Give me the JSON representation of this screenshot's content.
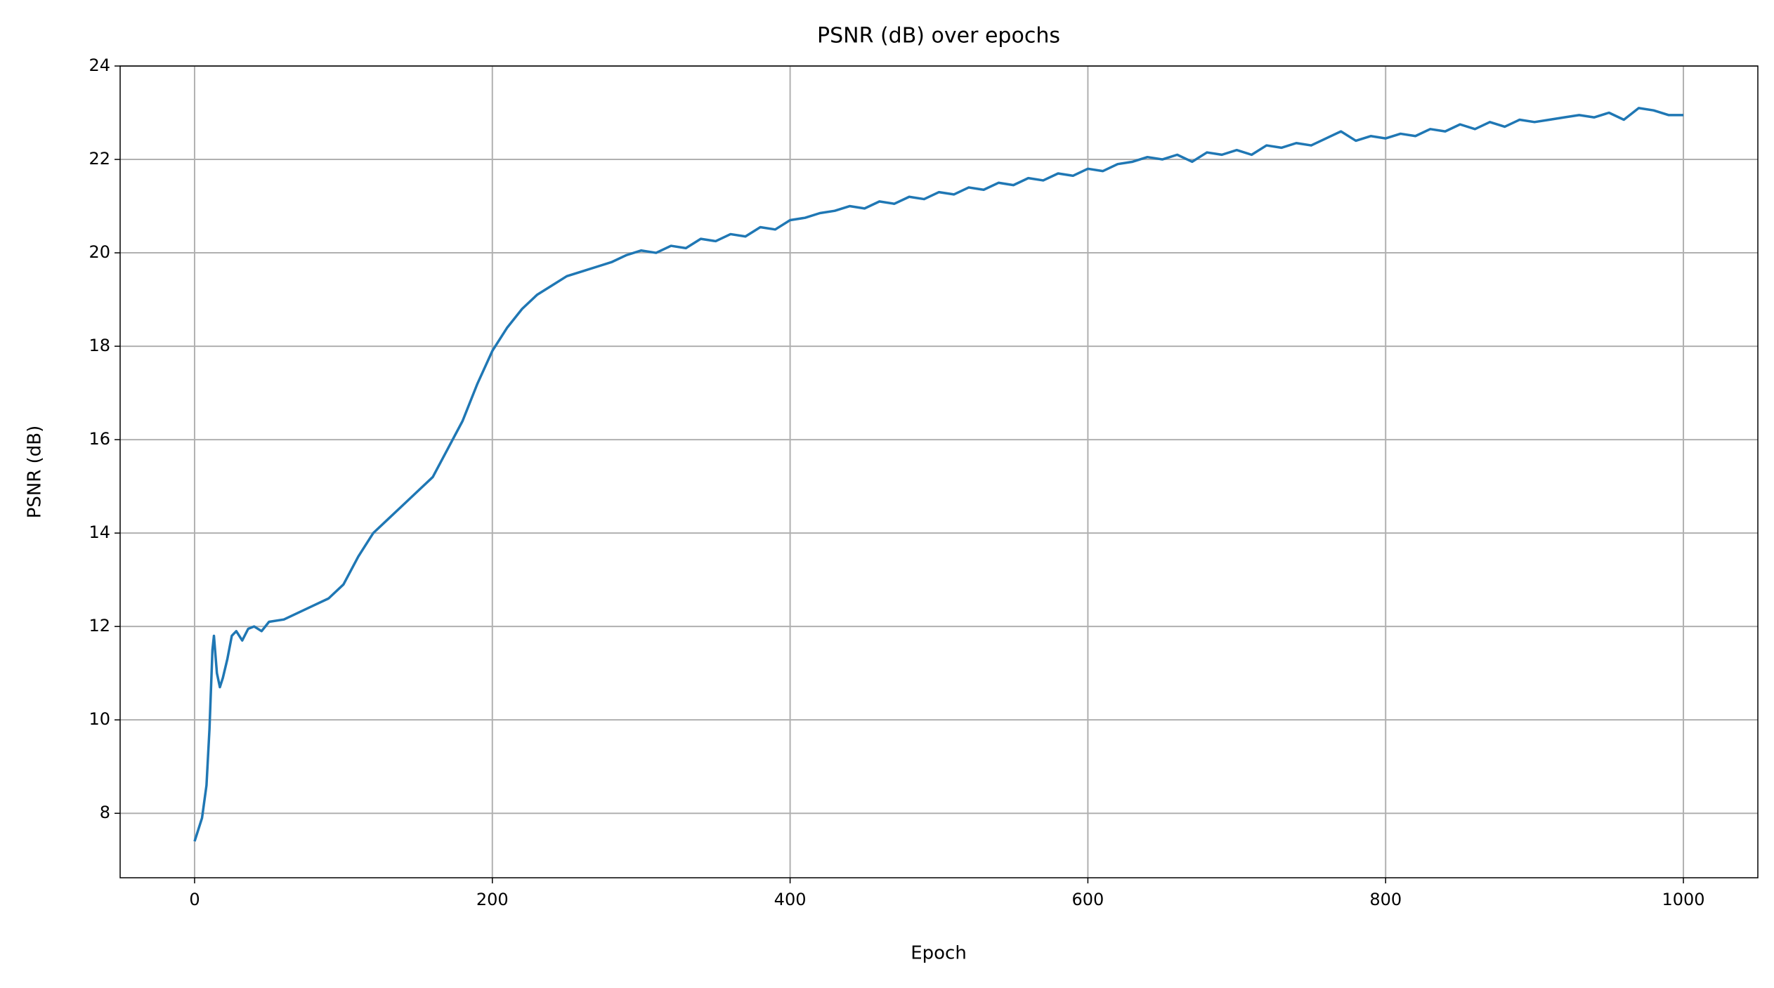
{
  "chart_data": {
    "type": "line",
    "title": "PSNR (dB) over epochs",
    "xlabel": "Epoch",
    "ylabel": "PSNR (dB)",
    "x": [
      0,
      2,
      5,
      8,
      10,
      12,
      13,
      15,
      17,
      19,
      22,
      25,
      28,
      32,
      36,
      40,
      45,
      50,
      60,
      70,
      80,
      90,
      100,
      110,
      120,
      130,
      140,
      150,
      160,
      170,
      180,
      190,
      200,
      210,
      220,
      230,
      240,
      250,
      260,
      270,
      280,
      290,
      300,
      310,
      320,
      330,
      340,
      350,
      360,
      370,
      380,
      390,
      400,
      410,
      420,
      430,
      440,
      450,
      460,
      470,
      480,
      490,
      500,
      510,
      520,
      530,
      540,
      550,
      560,
      570,
      580,
      590,
      600,
      610,
      620,
      630,
      640,
      650,
      660,
      670,
      680,
      690,
      700,
      710,
      720,
      730,
      740,
      750,
      760,
      770,
      780,
      790,
      800,
      810,
      820,
      830,
      840,
      850,
      860,
      870,
      880,
      890,
      900,
      910,
      920,
      930,
      940,
      950,
      960,
      970,
      980,
      990,
      1000
    ],
    "series": [
      {
        "name": "PSNR",
        "color": "#1f77b4",
        "values": [
          7.4,
          7.6,
          7.9,
          8.6,
          9.8,
          11.5,
          11.8,
          11.0,
          10.7,
          10.9,
          11.3,
          11.8,
          11.9,
          11.7,
          11.95,
          12.0,
          11.9,
          12.1,
          12.15,
          12.3,
          12.45,
          12.6,
          12.9,
          13.5,
          14.0,
          14.3,
          14.6,
          14.9,
          15.2,
          15.8,
          16.4,
          17.2,
          17.9,
          18.4,
          18.8,
          19.1,
          19.3,
          19.5,
          19.6,
          19.7,
          19.8,
          19.95,
          20.05,
          20.0,
          20.15,
          20.1,
          20.3,
          20.25,
          20.4,
          20.35,
          20.55,
          20.5,
          20.7,
          20.75,
          20.85,
          20.9,
          21.0,
          20.95,
          21.1,
          21.05,
          21.2,
          21.15,
          21.3,
          21.25,
          21.4,
          21.35,
          21.5,
          21.45,
          21.6,
          21.55,
          21.7,
          21.65,
          21.8,
          21.75,
          21.9,
          21.95,
          22.05,
          22.0,
          22.1,
          21.95,
          22.15,
          22.1,
          22.2,
          22.1,
          22.3,
          22.25,
          22.35,
          22.3,
          22.45,
          22.6,
          22.4,
          22.5,
          22.45,
          22.55,
          22.5,
          22.65,
          22.6,
          22.75,
          22.65,
          22.8,
          22.7,
          22.85,
          22.8,
          22.85,
          22.9,
          22.95,
          22.9,
          23.0,
          22.85,
          23.1,
          23.05,
          22.95,
          22.95
        ]
      }
    ],
    "xlim": [
      -50,
      1050
    ],
    "ylim": [
      6.62,
      24.0
    ],
    "xticks": [
      0,
      200,
      400,
      600,
      800,
      1000
    ],
    "yticks": [
      8,
      10,
      12,
      14,
      16,
      18,
      20,
      22,
      24
    ],
    "grid": true
  }
}
